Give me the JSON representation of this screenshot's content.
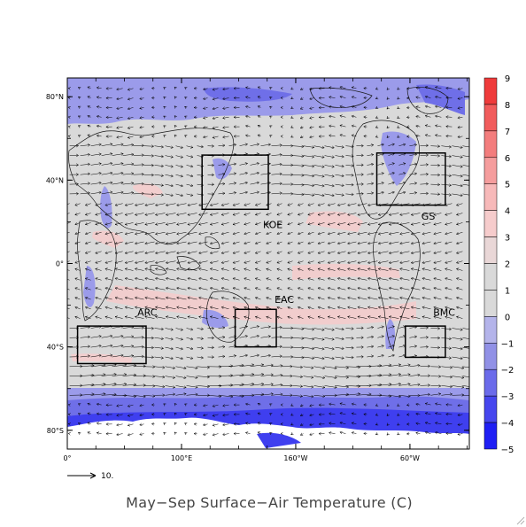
{
  "map": {
    "title": "May−Sep  Surface−Air Temperature (C)",
    "lat_ticks": [
      {
        "lat": 80,
        "label": "80°N"
      },
      {
        "lat": 40,
        "label": "40°N"
      },
      {
        "lat": 0,
        "label": "0°"
      },
      {
        "lat": -40,
        "label": "40°S"
      },
      {
        "lat": -80,
        "label": "80°S"
      }
    ],
    "lon_ticks": [
      {
        "lon": 0,
        "label": "0°"
      },
      {
        "lon": 100,
        "label": "100°E"
      },
      {
        "lon": 200,
        "label": "160°W"
      },
      {
        "lon": 300,
        "label": "60°W"
      }
    ],
    "lat_range": [
      -89,
      89
    ],
    "lon_range": [
      0,
      352
    ],
    "vector_scale_label": "10.",
    "background_color": "#d9d9d9",
    "land_color": "#1a1a1a",
    "vector_color": "#000000"
  },
  "colorbar": {
    "levels": [
      "9",
      "8",
      "7",
      "6",
      "5",
      "4",
      "3",
      "2",
      "1",
      "0",
      "−1",
      "−2",
      "−3",
      "−4",
      "−5"
    ],
    "colors": [
      "#ef3b3b",
      "#f15c5c",
      "#f37d7d",
      "#f59d9d",
      "#f7b9b9",
      "#f6cccc",
      "#e9d7d7",
      "#d9d9d9",
      "#d9d9d9",
      "#b4b4ea",
      "#9191e6",
      "#6b6bea",
      "#4646ee",
      "#1f1ff4"
    ]
  },
  "regions": [
    {
      "name": "KOE",
      "lon": [
        118,
        176
      ],
      "lat": [
        52,
        26
      ],
      "label_lon": 180,
      "label_lat": 17
    },
    {
      "name": "GS",
      "lon": [
        271,
        331
      ],
      "lat": [
        53,
        28
      ],
      "label_lon": 316,
      "label_lat": 21
    },
    {
      "name": "EAC",
      "lon": [
        147,
        183
      ],
      "lat": [
        -22,
        -40
      ],
      "label_lon": 190,
      "label_lat": -19
    },
    {
      "name": "ARC",
      "lon": [
        9,
        69
      ],
      "lat": [
        -30,
        -48
      ],
      "label_lon": 70,
      "label_lat": -25
    },
    {
      "name": "BMC",
      "lon": [
        296,
        331
      ],
      "lat": [
        -30,
        -45
      ],
      "label_lon": 330,
      "label_lat": -25
    }
  ]
}
